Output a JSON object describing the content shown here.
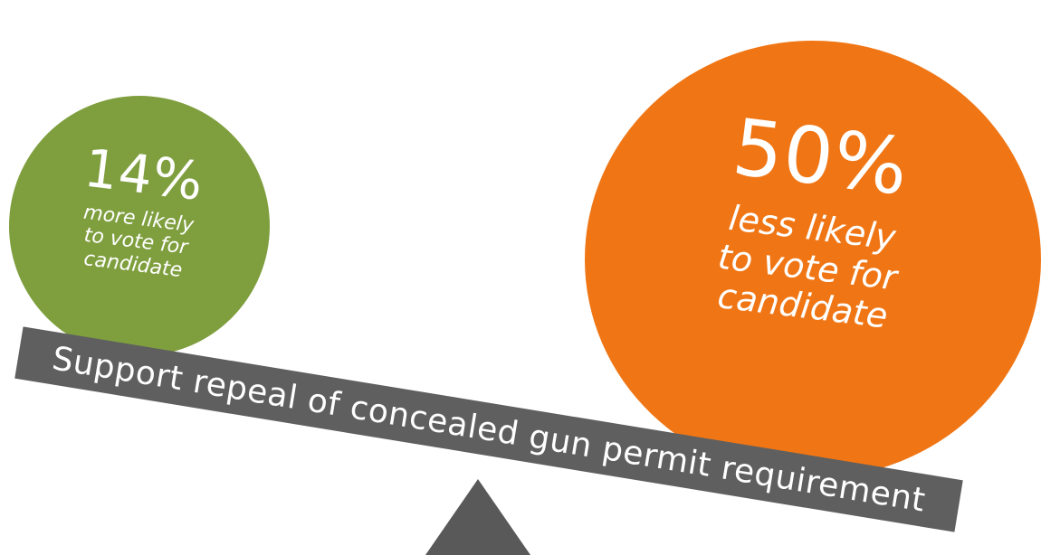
{
  "left_option": {
    "value": "14%",
    "caption_lines": [
      "more likely",
      "to vote for",
      "candidate"
    ],
    "color": "#7f9f3f"
  },
  "right_option": {
    "value": "50%",
    "caption_lines": [
      "less likely",
      "to vote for",
      "candidate"
    ],
    "color": "#f07615"
  },
  "beam": {
    "label": "Support repeal of concealed gun permit requirement",
    "color": "#5f5f5f"
  },
  "fulcrum": {
    "color": "#595959"
  }
}
